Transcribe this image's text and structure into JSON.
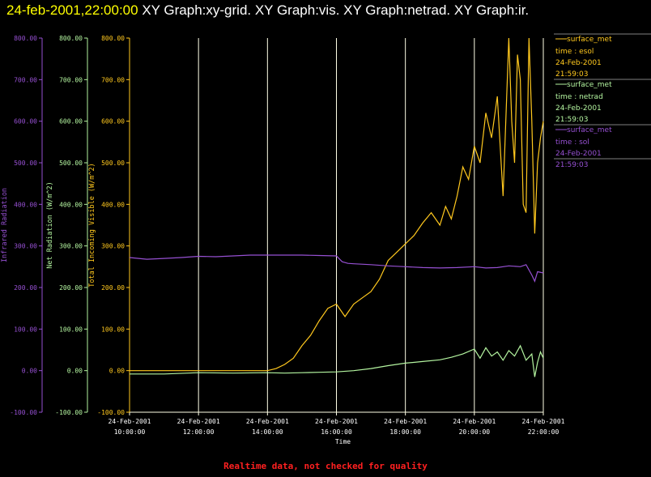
{
  "header": {
    "timestamp": "24-feb-2001,22:00:00",
    "graph_titles": "XY Graph:xy-grid.  XY Graph:vis.  XY Graph:netrad.  XY Graph:ir."
  },
  "footer": {
    "notice": "Realtime data, not checked for quality"
  },
  "colors": {
    "visible": "#ffc81e",
    "netrad": "#b4f5a0",
    "ir": "#9650d2",
    "grid": "#ffffe6",
    "notice": "#ff2020"
  },
  "legend": [
    {
      "line": "surface_met",
      "field": "time : esol",
      "date": "24-Feb-2001",
      "time": "21:59:03"
    },
    {
      "line": "surface_met",
      "field": "time : netrad",
      "date": "24-Feb-2001",
      "time": "21:59:03"
    },
    {
      "line": "surface_met",
      "field": "time : sol",
      "date": "24-Feb-2001",
      "time": "21:59:03"
    }
  ],
  "chart_data": {
    "type": "line",
    "xlabel": "Time",
    "x_tick_labels": [
      [
        "24-Feb-2001",
        "10:00:00"
      ],
      [
        "24-Feb-2001",
        "12:00:00"
      ],
      [
        "24-Feb-2001",
        "14:00:00"
      ],
      [
        "24-Feb-2001",
        "16:00:00"
      ],
      [
        "24-Feb-2001",
        "18:00:00"
      ],
      [
        "24-Feb-2001",
        "20:00:00"
      ],
      [
        "24-Feb-2001",
        "22:00:00"
      ]
    ],
    "xlim": [
      "24-Feb-2001 10:00:00",
      "24-Feb-2001 22:00:00"
    ],
    "grid": true,
    "axes": [
      {
        "id": "ir",
        "label": "Infrared Radiation",
        "ylim": [
          -100,
          800
        ],
        "ticks": [
          "-100.00",
          "0.00",
          "100.00",
          "200.00",
          "300.00",
          "400.00",
          "500.00",
          "600.00",
          "700.00",
          "800.00"
        ]
      },
      {
        "id": "netrad",
        "label": "Net Radiation (W/m^2)",
        "ylim": [
          -100,
          800
        ],
        "ticks": [
          "-100.00",
          "0.00",
          "100.00",
          "200.00",
          "300.00",
          "400.00",
          "500.00",
          "600.00",
          "700.00",
          "800.00"
        ]
      },
      {
        "id": "visible",
        "label": "Total Incoming Visible (W/m^2)",
        "ylim": [
          -100,
          800
        ],
        "ticks": [
          "-100.00",
          "0.00",
          "100.00",
          "200.00",
          "300.00",
          "400.00",
          "500.00",
          "600.00",
          "700.00",
          "800.00"
        ]
      }
    ],
    "series": [
      {
        "name": "surface_met time : esol",
        "axis": "visible",
        "x": [
          "10:00",
          "11:00",
          "12:00",
          "13:00",
          "13:30",
          "14:00",
          "14:15",
          "14:30",
          "14:45",
          "15:00",
          "15:15",
          "15:30",
          "15:45",
          "16:00",
          "16:15",
          "16:30",
          "16:45",
          "17:00",
          "17:15",
          "17:30",
          "17:45",
          "18:00",
          "18:15",
          "18:30",
          "18:45",
          "19:00",
          "19:10",
          "19:20",
          "19:30",
          "19:40",
          "19:50",
          "20:00",
          "20:10",
          "20:20",
          "20:30",
          "20:40",
          "20:50",
          "21:00",
          "21:05",
          "21:10",
          "21:15",
          "21:20",
          "21:25",
          "21:30",
          "21:35",
          "21:40",
          "21:45",
          "21:50",
          "21:55",
          "22:00"
        ],
        "y": [
          0,
          0,
          0,
          0,
          0,
          0,
          5,
          15,
          30,
          60,
          85,
          120,
          150,
          160,
          130,
          160,
          175,
          190,
          220,
          265,
          285,
          305,
          325,
          355,
          380,
          350,
          395,
          365,
          420,
          490,
          460,
          540,
          500,
          620,
          560,
          660,
          420,
          800,
          600,
          500,
          760,
          700,
          400,
          380,
          800,
          600,
          330,
          500,
          560,
          600
        ]
      },
      {
        "name": "surface_met time : netrad",
        "axis": "netrad",
        "x": [
          "10:00",
          "11:00",
          "12:00",
          "13:00",
          "14:00",
          "14:30",
          "15:00",
          "15:30",
          "16:00",
          "16:30",
          "17:00",
          "17:30",
          "18:00",
          "18:30",
          "19:00",
          "19:20",
          "19:40",
          "20:00",
          "20:10",
          "20:20",
          "20:30",
          "20:40",
          "20:50",
          "21:00",
          "21:10",
          "21:20",
          "21:30",
          "21:40",
          "21:45",
          "21:50",
          "21:55",
          "22:00"
        ],
        "y": [
          -8,
          -8,
          -5,
          -6,
          -5,
          -6,
          -5,
          -4,
          -3,
          0,
          5,
          12,
          18,
          22,
          26,
          32,
          40,
          52,
          30,
          55,
          35,
          45,
          25,
          48,
          35,
          60,
          25,
          40,
          -15,
          20,
          45,
          30
        ]
      },
      {
        "name": "surface_met time : sol",
        "axis": "ir",
        "x": [
          "10:00",
          "10:30",
          "11:00",
          "11:30",
          "12:00",
          "12:30",
          "13:00",
          "13:30",
          "14:00",
          "14:30",
          "15:00",
          "15:30",
          "16:00",
          "16:10",
          "16:20",
          "16:30",
          "17:00",
          "17:30",
          "18:00",
          "18:30",
          "19:00",
          "19:30",
          "20:00",
          "20:20",
          "20:40",
          "21:00",
          "21:20",
          "21:30",
          "21:40",
          "21:45",
          "21:50",
          "22:00"
        ],
        "y": [
          272,
          268,
          270,
          272,
          275,
          274,
          276,
          278,
          278,
          278,
          278,
          277,
          276,
          262,
          258,
          257,
          255,
          252,
          250,
          248,
          247,
          248,
          250,
          247,
          248,
          252,
          250,
          255,
          230,
          215,
          238,
          235
        ]
      }
    ]
  }
}
